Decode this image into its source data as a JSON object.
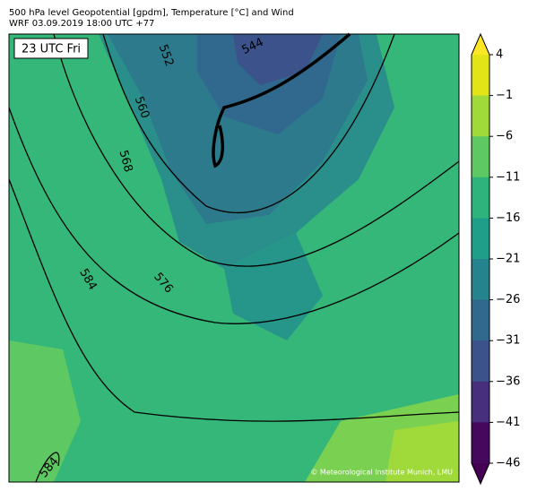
{
  "header": {
    "line1": "500 hPa level Geopotential [gpdm], Temperature [°C] and Wind",
    "line2": "WRF 03.09.2019 18:00 UTC +77"
  },
  "time_label": "23 UTC Fri",
  "contour_labels": [
    "552",
    "544",
    "560",
    "568",
    "584",
    "576",
    "584"
  ],
  "copyright": "© Meteorological Institute Munich, LMU",
  "colorbar": {
    "lim": [
      -46,
      4
    ],
    "ticks": [
      4,
      {
        "value": -1,
        "label": "−1"
      },
      {
        "value": -6,
        "label": "−6"
      },
      {
        "value": -11,
        "label": "−11"
      },
      {
        "value": -16,
        "label": "−16"
      },
      {
        "value": -21,
        "label": "−21"
      },
      {
        "value": -26,
        "label": "−26"
      },
      {
        "value": -31,
        "label": "−31"
      },
      {
        "value": -36,
        "label": "−36"
      },
      {
        "value": -41,
        "label": "−41"
      },
      {
        "value": -46,
        "label": "−46"
      }
    ],
    "colors": [
      "#e2e418",
      "#9fda3a",
      "#5ec962",
      "#2eb37c",
      "#1f9e89",
      "#25838e",
      "#30688e",
      "#3b528b",
      "#472f7d",
      "#46085c"
    ],
    "extend_colors": [
      "#fde725",
      "#440154"
    ]
  }
}
